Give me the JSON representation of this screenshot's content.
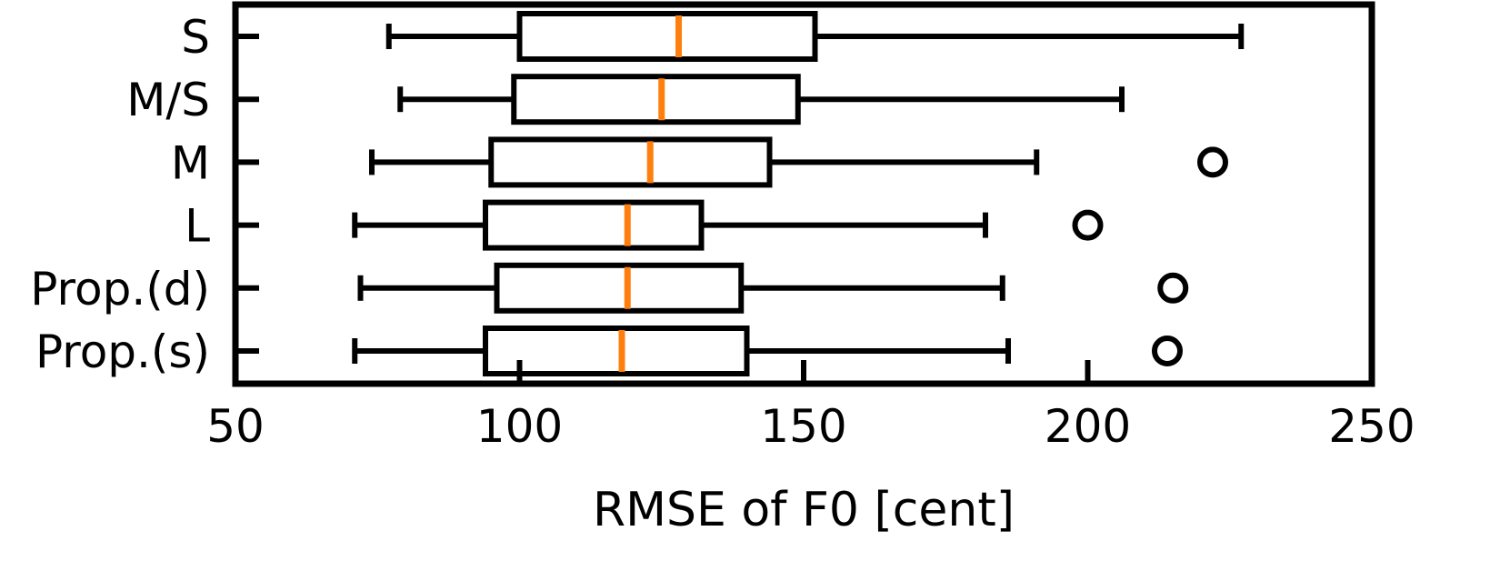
{
  "chart_data": {
    "type": "boxplot",
    "orientation": "horizontal",
    "xlabel": "RMSE of F0 [cent]",
    "xlim": [
      50,
      250
    ],
    "xticks": [
      "50",
      "100",
      "150",
      "200",
      "250"
    ],
    "categories": [
      "S",
      "M/S",
      "M",
      "L",
      "Prop.(d)",
      "Prop.(s)"
    ],
    "boxes": [
      {
        "label": "S",
        "whisker_low": 77,
        "q1": 100,
        "median": 128,
        "q3": 152,
        "whisker_high": 227,
        "outliers": []
      },
      {
        "label": "M/S",
        "whisker_low": 79,
        "q1": 99,
        "median": 125,
        "q3": 149,
        "whisker_high": 206,
        "outliers": []
      },
      {
        "label": "M",
        "whisker_low": 74,
        "q1": 95,
        "median": 123,
        "q3": 144,
        "whisker_high": 191,
        "outliers": [
          222
        ]
      },
      {
        "label": "L",
        "whisker_low": 71,
        "q1": 94,
        "median": 119,
        "q3": 132,
        "whisker_high": 182,
        "outliers": [
          200
        ]
      },
      {
        "label": "Prop.(d)",
        "whisker_low": 72,
        "q1": 96,
        "median": 119,
        "q3": 139,
        "whisker_high": 185,
        "outliers": [
          215
        ]
      },
      {
        "label": "Prop.(s)",
        "whisker_low": 71,
        "q1": 94,
        "median": 118,
        "q3": 140,
        "whisker_high": 186,
        "outliers": [
          214
        ]
      }
    ],
    "colors": {
      "box": "#000000",
      "median": "#ff7f0e",
      "outlier": "#000000"
    },
    "grid": false,
    "legend": "none"
  }
}
